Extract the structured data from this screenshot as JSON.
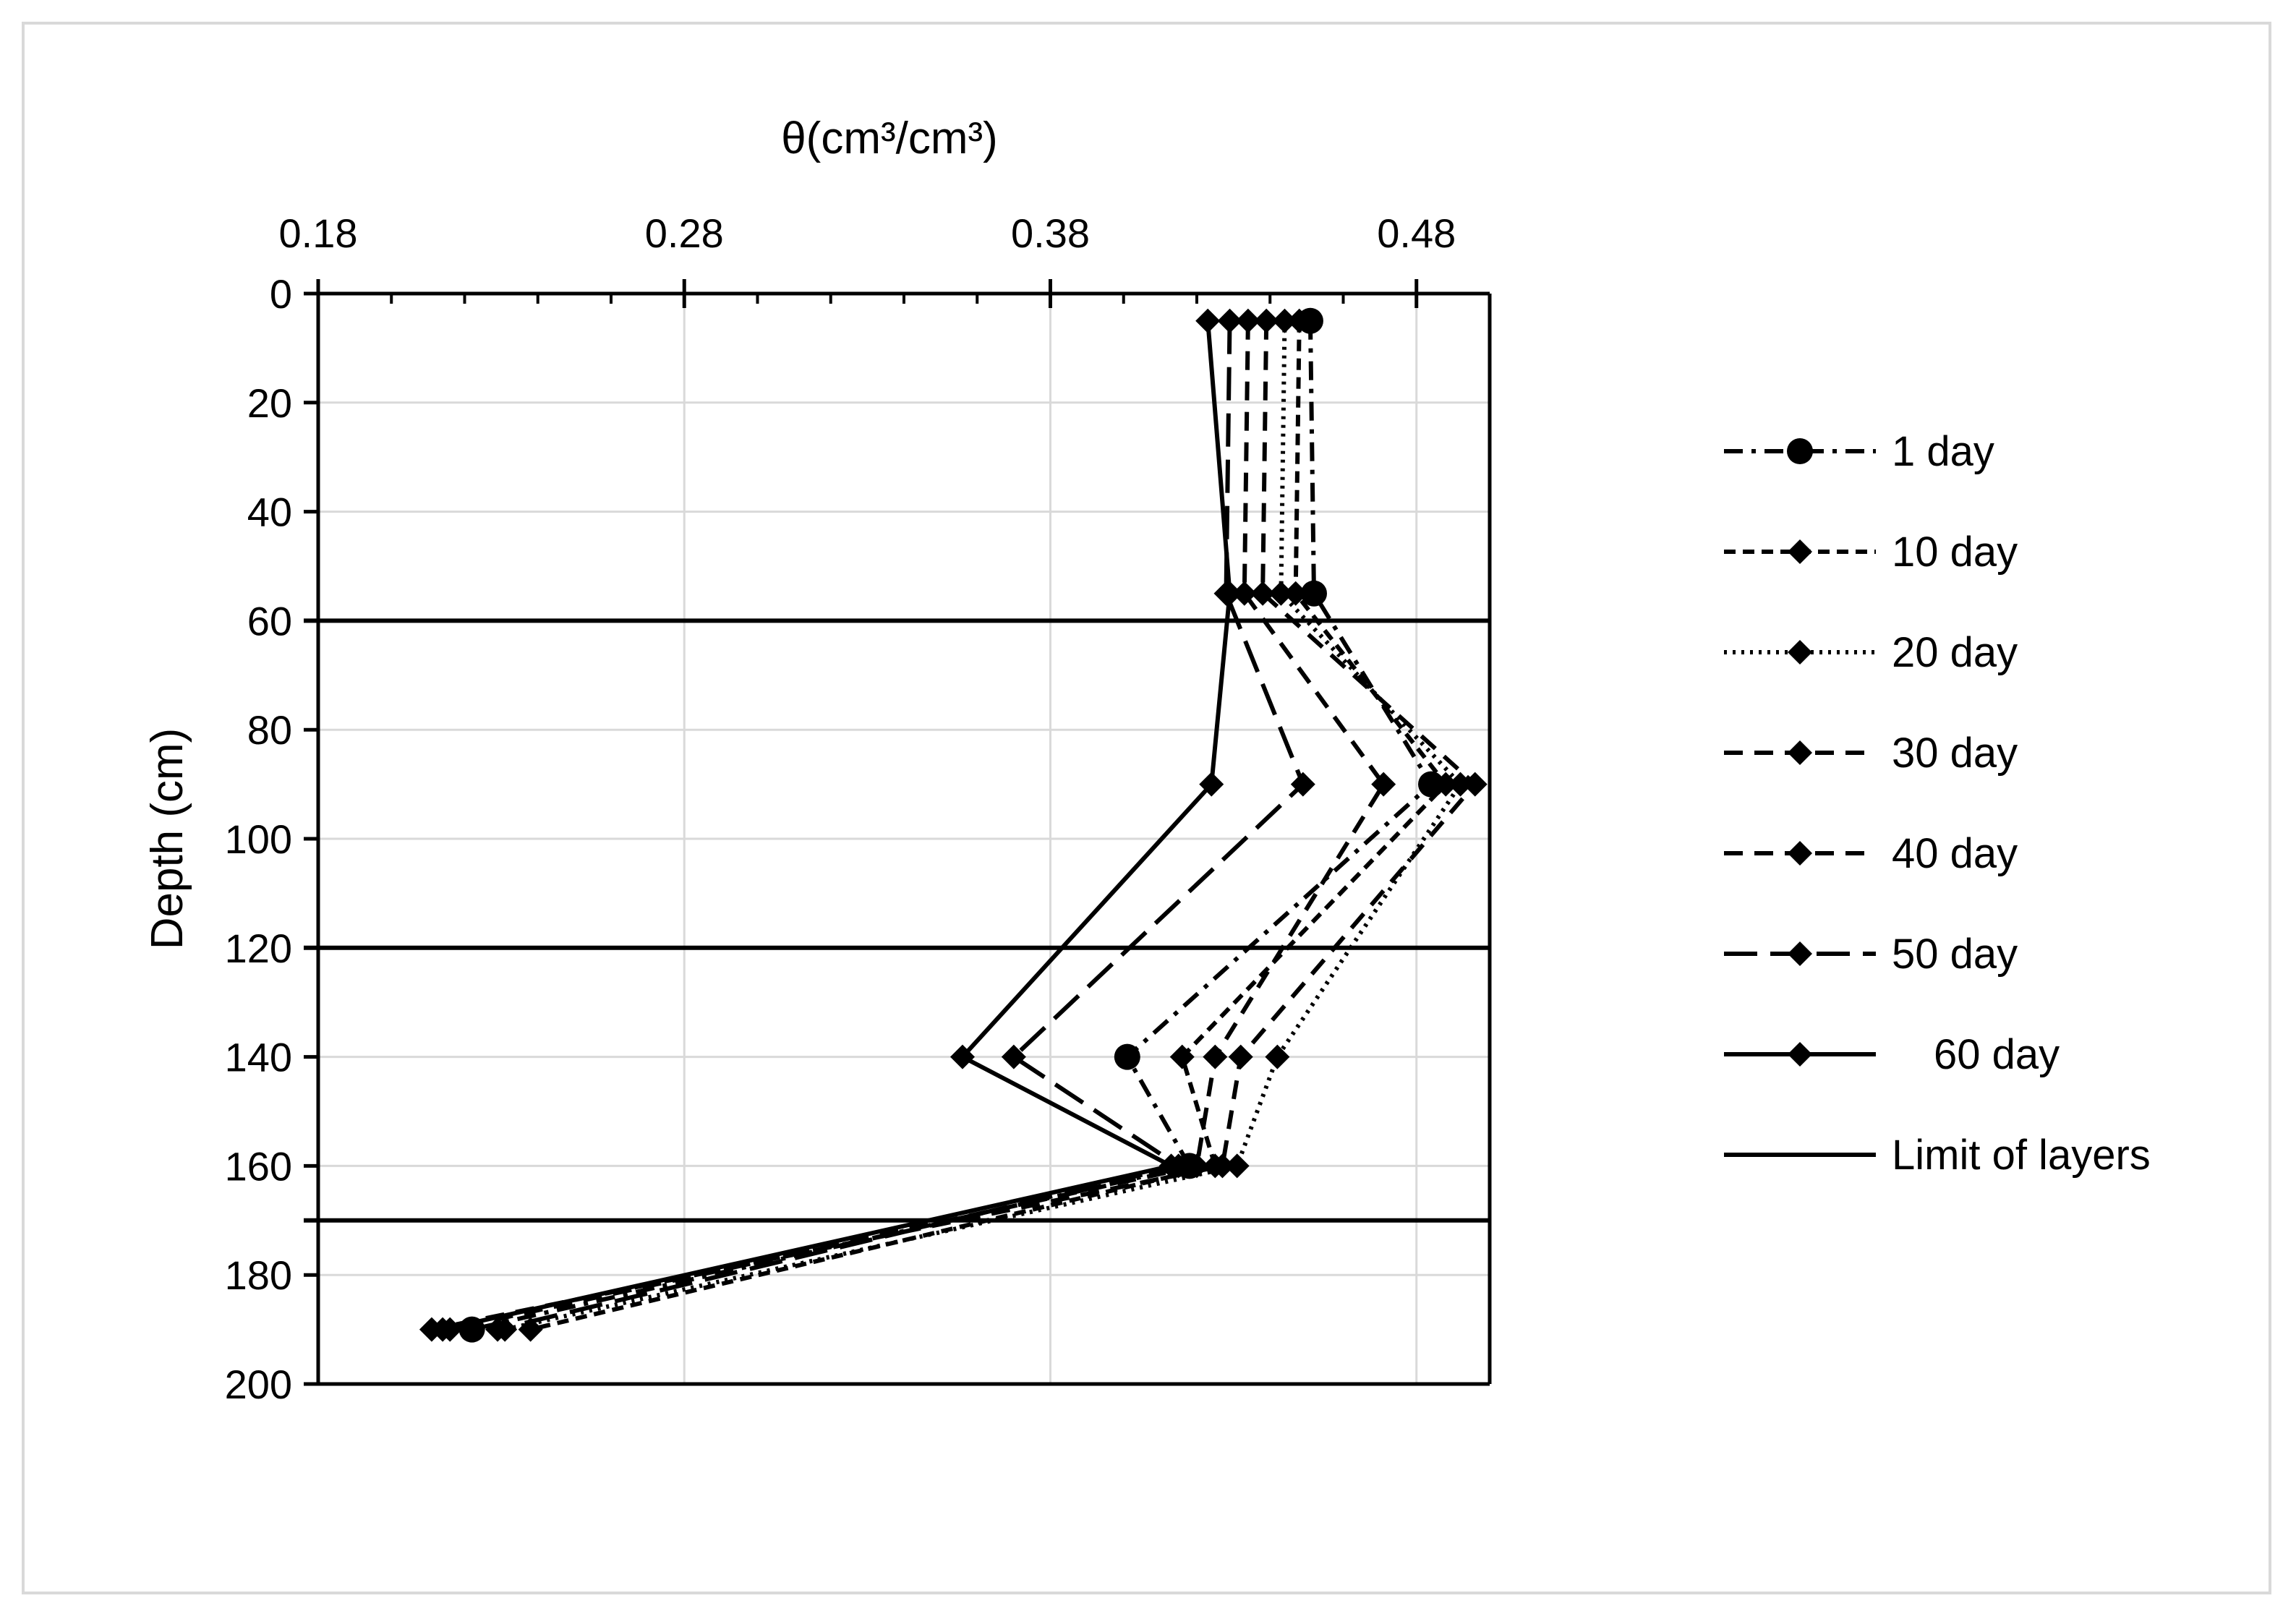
{
  "chart_data": {
    "type": "line",
    "title": "",
    "xlabel": "θ(cm³/cm³)",
    "ylabel": "Depth (cm)",
    "x_axis_position": "top",
    "y_axis_inverted": true,
    "xlim": [
      0.18,
      0.5
    ],
    "ylim": [
      0,
      200
    ],
    "xticks": [
      "0.18",
      "0.28",
      "0.38",
      "0.48"
    ],
    "xtick_values": [
      0.18,
      0.28,
      0.38,
      0.48
    ],
    "yticks": [
      "0",
      "20",
      "40",
      "60",
      "80",
      "100",
      "120",
      "140",
      "160",
      "180",
      "200"
    ],
    "ytick_values": [
      0,
      20,
      40,
      60,
      80,
      100,
      120,
      140,
      160,
      180,
      200
    ],
    "grid": true,
    "legend_position": "right",
    "depths": [
      5,
      55,
      90,
      140,
      160,
      190
    ],
    "series": [
      {
        "name": "1 day",
        "marker": "circle",
        "dash": "dash-dot",
        "x": [
          0.451,
          0.452,
          0.484,
          0.401,
          0.418,
          0.222
        ]
      },
      {
        "name": "10 day",
        "marker": "diamond",
        "dash": "short-dash",
        "x": [
          0.448,
          0.447,
          0.488,
          0.416,
          0.425,
          0.238
        ]
      },
      {
        "name": "20 day",
        "marker": "diamond",
        "dash": "dotted",
        "x": [
          0.444,
          0.443,
          0.492,
          0.442,
          0.431,
          0.231
        ]
      },
      {
        "name": "30 day",
        "marker": "diamond",
        "dash": "dash",
        "x": [
          0.439,
          0.438,
          0.496,
          0.432,
          0.427,
          0.211
        ]
      },
      {
        "name": "40 day",
        "marker": "diamond",
        "dash": "dash",
        "x": [
          0.434,
          0.433,
          0.471,
          0.425,
          0.42,
          0.216
        ]
      },
      {
        "name": "50 day",
        "marker": "diamond",
        "dash": "long-dash",
        "x": [
          0.429,
          0.428,
          0.449,
          0.37,
          0.415,
          0.229
        ]
      },
      {
        "name": "60 day",
        "marker": "diamond",
        "dash": "solid",
        "x": [
          0.423,
          0.429,
          0.424,
          0.356,
          0.413,
          0.214
        ]
      }
    ],
    "layer_limits_series_name": "Limit of layers",
    "layer_limits": [
      60,
      120,
      170
    ],
    "colors": {
      "lines": "#000000",
      "grid": "#d9d9d9",
      "axis": "#000000"
    }
  }
}
